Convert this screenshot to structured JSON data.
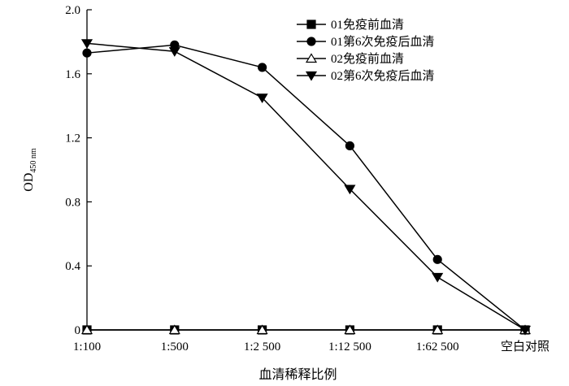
{
  "chart_data": {
    "type": "line",
    "categories": [
      "1:100",
      "1:500",
      "1:2 500",
      "1:12 500",
      "1:62 500",
      "空白对照"
    ],
    "ylabel_main": "OD",
    "ylabel_sub": "450 nm",
    "xlabel": "血清稀释比例",
    "ylim": [
      0,
      2.0
    ],
    "yticks": [
      0,
      0.4,
      0.8,
      1.2,
      1.6,
      2.0
    ],
    "ytick_labels": [
      "0",
      "0.4",
      "0.8",
      "1.2",
      "1.6",
      "2.0"
    ],
    "grid": false,
    "legend_position": "top-right",
    "series": [
      {
        "name": "01免疫前血清",
        "marker": "square-filled",
        "values": [
          0,
          0,
          0,
          0,
          0,
          0
        ]
      },
      {
        "name": "01第6次免疫后血清",
        "marker": "circle-filled",
        "values": [
          1.73,
          1.78,
          1.64,
          1.15,
          0.44,
          0
        ]
      },
      {
        "name": "02免疫前血清",
        "marker": "triangle-up-open",
        "values": [
          0,
          0,
          0,
          0,
          0,
          0
        ]
      },
      {
        "name": "02第6次免疫后血清",
        "marker": "triangle-down-filled",
        "values": [
          1.79,
          1.74,
          1.45,
          0.88,
          0.33,
          0
        ]
      }
    ]
  }
}
